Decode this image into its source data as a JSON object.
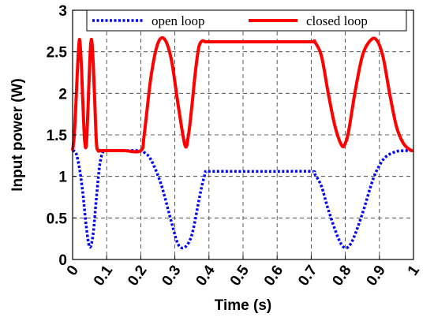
{
  "chart_data": {
    "type": "line",
    "title": "",
    "xlabel": "Time (s)",
    "ylabel": "Input power (W)",
    "xlim": [
      0,
      1
    ],
    "ylim": [
      0,
      3
    ],
    "xticks": [
      0,
      0.1,
      0.2,
      0.3,
      0.4,
      0.5,
      0.6,
      0.7,
      0.8,
      0.9,
      1
    ],
    "xtick_labels": [
      "0",
      "0.1",
      "0.2",
      "0.3",
      "0.4",
      "0.5",
      "0.6",
      "0.7",
      "0.8",
      "0.9",
      "1"
    ],
    "yticks": [
      0,
      0.5,
      1,
      1.5,
      2,
      2.5,
      3
    ],
    "ytick_labels": [
      "0",
      "0.5",
      "1",
      "1.5",
      "2",
      "2.5",
      "3"
    ],
    "grid": true,
    "legend_position": "top",
    "series": [
      {
        "name": "open loop",
        "color": "#0000ff",
        "style": "dotted",
        "x": [
          0.0,
          0.01,
          0.02,
          0.03,
          0.04,
          0.05,
          0.06,
          0.07,
          0.08,
          0.09,
          0.1,
          0.15,
          0.2,
          0.21,
          0.23,
          0.26,
          0.29,
          0.31,
          0.33,
          0.35,
          0.37,
          0.38,
          0.39,
          0.4,
          0.5,
          0.6,
          0.7,
          0.71,
          0.73,
          0.75,
          0.78,
          0.8,
          0.82,
          0.85,
          0.88,
          0.9,
          0.92,
          0.95,
          0.98,
          1.0
        ],
        "y": [
          1.31,
          1.28,
          1.1,
          0.8,
          0.4,
          0.15,
          0.3,
          0.75,
          1.15,
          1.3,
          1.31,
          1.31,
          1.31,
          1.29,
          1.2,
          0.9,
          0.45,
          0.18,
          0.15,
          0.3,
          0.7,
          0.9,
          1.04,
          1.06,
          1.06,
          1.06,
          1.06,
          1.03,
          0.88,
          0.6,
          0.25,
          0.14,
          0.22,
          0.55,
          0.95,
          1.13,
          1.24,
          1.3,
          1.31,
          1.31
        ]
      },
      {
        "name": "closed loop",
        "color": "#ff0000",
        "style": "solid",
        "x": [
          0.0,
          0.005,
          0.01,
          0.015,
          0.02,
          0.025,
          0.03,
          0.035,
          0.04,
          0.045,
          0.05,
          0.055,
          0.06,
          0.065,
          0.07,
          0.075,
          0.08,
          0.085,
          0.09,
          0.1,
          0.15,
          0.2,
          0.21,
          0.23,
          0.25,
          0.27,
          0.29,
          0.31,
          0.33,
          0.34,
          0.35,
          0.36,
          0.37,
          0.38,
          0.39,
          0.4,
          0.5,
          0.6,
          0.7,
          0.71,
          0.73,
          0.75,
          0.77,
          0.79,
          0.8,
          0.81,
          0.83,
          0.85,
          0.87,
          0.89,
          0.91,
          0.93,
          0.95,
          0.97,
          0.99,
          1.0
        ],
        "y": [
          1.31,
          1.5,
          1.9,
          2.35,
          2.65,
          2.4,
          1.9,
          1.45,
          1.37,
          1.8,
          2.35,
          2.65,
          2.4,
          1.9,
          1.4,
          1.31,
          1.31,
          1.31,
          1.31,
          1.31,
          1.31,
          1.31,
          1.5,
          2.2,
          2.6,
          2.65,
          2.4,
          1.85,
          1.37,
          1.5,
          1.85,
          2.25,
          2.55,
          2.63,
          2.62,
          2.62,
          2.62,
          2.62,
          2.62,
          2.62,
          2.45,
          2.0,
          1.6,
          1.37,
          1.4,
          1.55,
          2.05,
          2.45,
          2.62,
          2.65,
          2.45,
          2.0,
          1.6,
          1.4,
          1.32,
          1.31
        ]
      }
    ]
  }
}
